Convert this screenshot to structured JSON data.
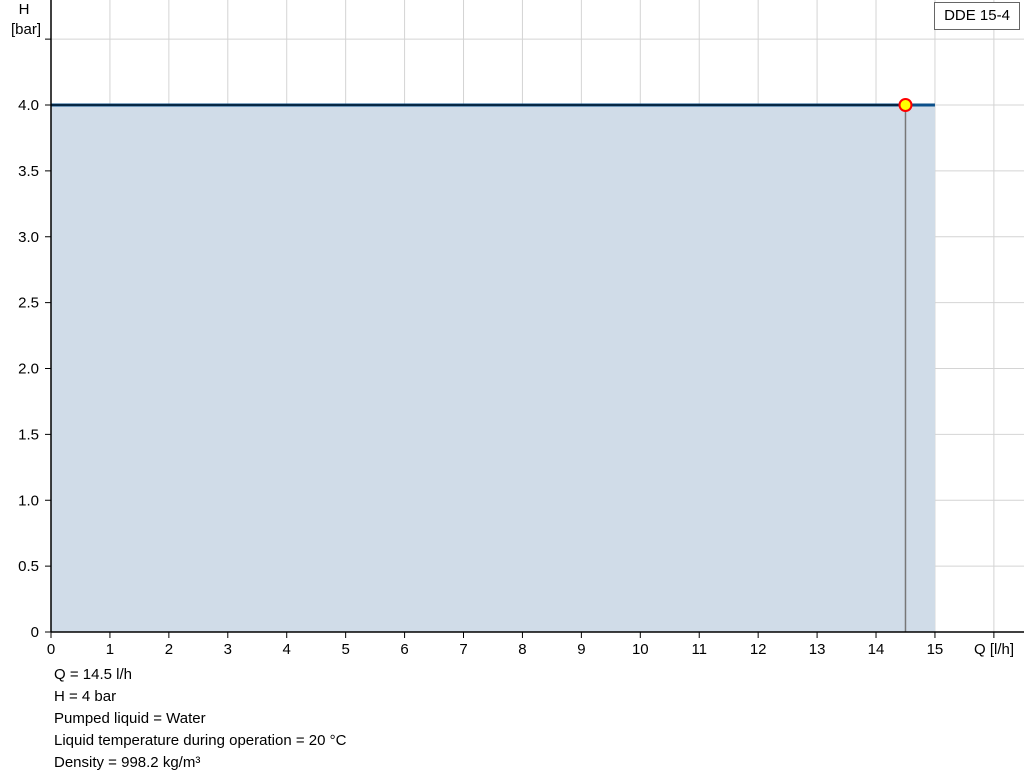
{
  "chart_data": {
    "type": "area",
    "xlabel": "Q [l/h]",
    "ylabel_line1": "H",
    "ylabel_line2": "[bar]",
    "xlim": [
      0,
      16
    ],
    "ylim": [
      0,
      4.8
    ],
    "x_ticks": [
      "0",
      "1",
      "2",
      "3",
      "4",
      "5",
      "6",
      "7",
      "8",
      "9",
      "10",
      "11",
      "12",
      "13",
      "14",
      "15"
    ],
    "y_ticks": [
      {
        "v": 0,
        "label": "0"
      },
      {
        "v": 0.5,
        "label": "0.5"
      },
      {
        "v": 1,
        "label": "1.0"
      },
      {
        "v": 1.5,
        "label": "1.5"
      },
      {
        "v": 2,
        "label": "2.0"
      },
      {
        "v": 2.5,
        "label": "2.5"
      },
      {
        "v": 3,
        "label": "3.0"
      },
      {
        "v": 3.5,
        "label": "3.5"
      },
      {
        "v": 4,
        "label": "4.0"
      },
      {
        "v": 4.5,
        "label": ""
      }
    ],
    "grid": true,
    "series": [
      {
        "name": "DDE 15-4",
        "x": [
          0,
          15
        ],
        "y": [
          4,
          4
        ]
      }
    ],
    "operating_point": {
      "x": 14.5,
      "y": 4
    },
    "legend": {
      "label": "DDE 15-4",
      "placement": "top-right"
    },
    "colors": {
      "curve": "#0b4f8a",
      "fill": "#d0dce8",
      "grid": "#d4d4d4",
      "point_fill": "#ffff00",
      "point_stroke": "#ff0000"
    }
  },
  "info": [
    "Q = 14.5 l/h",
    "H = 4 bar",
    "Pumped liquid = Water",
    "Liquid temperature during operation = 20 °C",
    "Density = 998.2 kg/m³"
  ]
}
